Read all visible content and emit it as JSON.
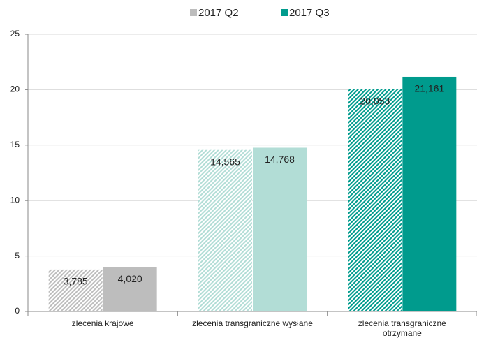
{
  "chart_data": {
    "type": "bar",
    "categories": [
      "zlecenia krajowe",
      "zlecenia transgraniczne wysłane",
      "zlecenia transgraniczne otrzymane"
    ],
    "category_colors": [
      "#bdbdbd",
      "#b2ddd6",
      "#009b8d"
    ],
    "series": [
      {
        "name": "2017 Q2",
        "color": "#bdbdbd",
        "pattern": "hatch",
        "values": [
          3.785,
          14.565,
          20.053
        ],
        "value_labels": [
          "3,785",
          "14,565",
          "20,053"
        ]
      },
      {
        "name": "2017 Q3",
        "color": "#009b8d",
        "pattern": "solid",
        "values": [
          4.02,
          14.768,
          21.161
        ],
        "value_labels": [
          "4,020",
          "14,768",
          "21,161"
        ]
      }
    ],
    "ylim": [
      0,
      25
    ],
    "yticks": [
      0,
      5,
      10,
      15,
      20,
      25
    ],
    "grid": true,
    "legend": "top"
  }
}
